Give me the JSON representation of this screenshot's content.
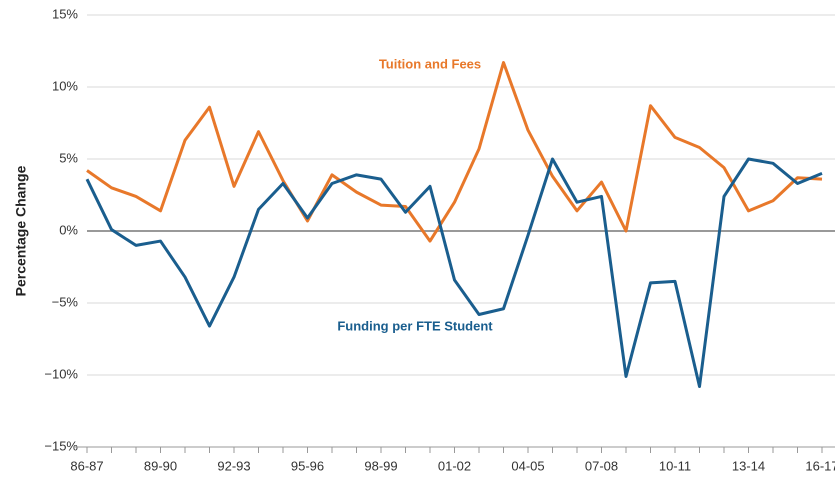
{
  "chart_data": {
    "type": "line",
    "ylabel": "Percentage Change",
    "categories": [
      "86-87",
      null,
      null,
      "89-90",
      null,
      null,
      "92-93",
      null,
      null,
      "95-96",
      null,
      null,
      "98-99",
      null,
      null,
      "01-02",
      null,
      null,
      "04-05",
      null,
      null,
      "07-08",
      null,
      null,
      "10-11",
      null,
      null,
      "13-14",
      null,
      null,
      "16-17"
    ],
    "series": [
      {
        "name": "Tuition and Fees",
        "color": "#e8782a",
        "values": [
          4.2,
          3.0,
          2.4,
          1.4,
          6.3,
          8.6,
          3.1,
          6.9,
          3.5,
          0.7,
          3.9,
          2.7,
          1.8,
          1.7,
          -0.7,
          2.0,
          5.7,
          11.7,
          7.0,
          3.8,
          1.4,
          3.4,
          0.0,
          8.7,
          6.5,
          5.8,
          4.4,
          1.4,
          2.1,
          3.7,
          3.6
        ]
      },
      {
        "name": "Funding per FTE Student",
        "color": "#1a5e8e",
        "values": [
          3.6,
          0.1,
          -1.0,
          -0.7,
          -3.2,
          -6.6,
          -3.2,
          1.5,
          3.3,
          0.9,
          3.3,
          3.9,
          3.6,
          1.3,
          3.1,
          -3.4,
          -5.8,
          -5.4,
          -0.3,
          5.0,
          2.0,
          2.4,
          -10.1,
          -3.6,
          -3.5,
          -10.8,
          2.4,
          5.0,
          4.7,
          3.3,
          4.0
        ]
      }
    ],
    "ylim": [
      -15,
      15
    ],
    "yticks": [
      {
        "value": -15,
        "label": "−15%"
      },
      {
        "value": -10,
        "label": "−10%"
      },
      {
        "value": -5,
        "label": "−5%"
      },
      {
        "value": 0,
        "label": "0%"
      },
      {
        "value": 5,
        "label": "5%"
      },
      {
        "value": 10,
        "label": "10%"
      },
      {
        "value": 15,
        "label": "15%"
      }
    ],
    "grid": true
  }
}
